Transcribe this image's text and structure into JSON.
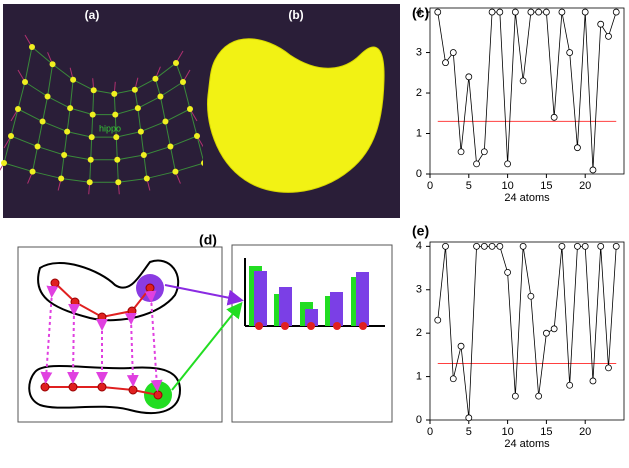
{
  "panels": {
    "a": "(a)",
    "a_annotation": "hippo",
    "b": "(b)",
    "d": "(d)"
  },
  "chart_data": [
    {
      "type": "line",
      "title": "(c)",
      "x_label": "24 atoms",
      "x": [
        1,
        2,
        3,
        4,
        5,
        6,
        7,
        8,
        9,
        10,
        11,
        12,
        13,
        14,
        15,
        16,
        17,
        18,
        19,
        20,
        21,
        22,
        23,
        24
      ],
      "series": [
        {
          "color": "#000000",
          "values": [
            4.0,
            2.75,
            3.0,
            0.55,
            2.4,
            0.25,
            0.55,
            4.0,
            4.0,
            0.25,
            4.0,
            2.3,
            4.0,
            4.0,
            4.0,
            1.4,
            4.0,
            3.0,
            0.65,
            4.0,
            0.1,
            3.7,
            3.4,
            4.0
          ]
        }
      ],
      "hline": {
        "value": 1.3,
        "color": "#ff4040"
      },
      "xlim": [
        0,
        25
      ],
      "ylim": [
        0,
        4.1
      ],
      "xticks": [
        0,
        5,
        10,
        15,
        20
      ],
      "yticks": [
        0,
        1,
        2,
        3,
        4
      ]
    },
    {
      "type": "line",
      "title": "(e)",
      "x_label": "24 atoms",
      "x": [
        1,
        2,
        3,
        4,
        5,
        6,
        7,
        8,
        9,
        10,
        11,
        12,
        13,
        14,
        15,
        16,
        17,
        18,
        19,
        20,
        21,
        22,
        23,
        24
      ],
      "series": [
        {
          "color": "#000000",
          "values": [
            2.3,
            4.0,
            0.95,
            1.7,
            0.05,
            4.0,
            4.0,
            4.0,
            4.0,
            3.4,
            0.55,
            4.0,
            2.85,
            0.55,
            2.0,
            2.1,
            4.0,
            0.8,
            4.0,
            4.0,
            0.9,
            4.0,
            1.2,
            4.0
          ]
        }
      ],
      "hline": {
        "value": 1.3,
        "color": "#ff4040"
      },
      "xlim": [
        0,
        25
      ],
      "ylim": [
        0,
        4.1
      ],
      "xticks": [
        0,
        5,
        10,
        15,
        20
      ],
      "yticks": [
        0,
        1,
        2,
        3,
        4
      ]
    }
  ]
}
